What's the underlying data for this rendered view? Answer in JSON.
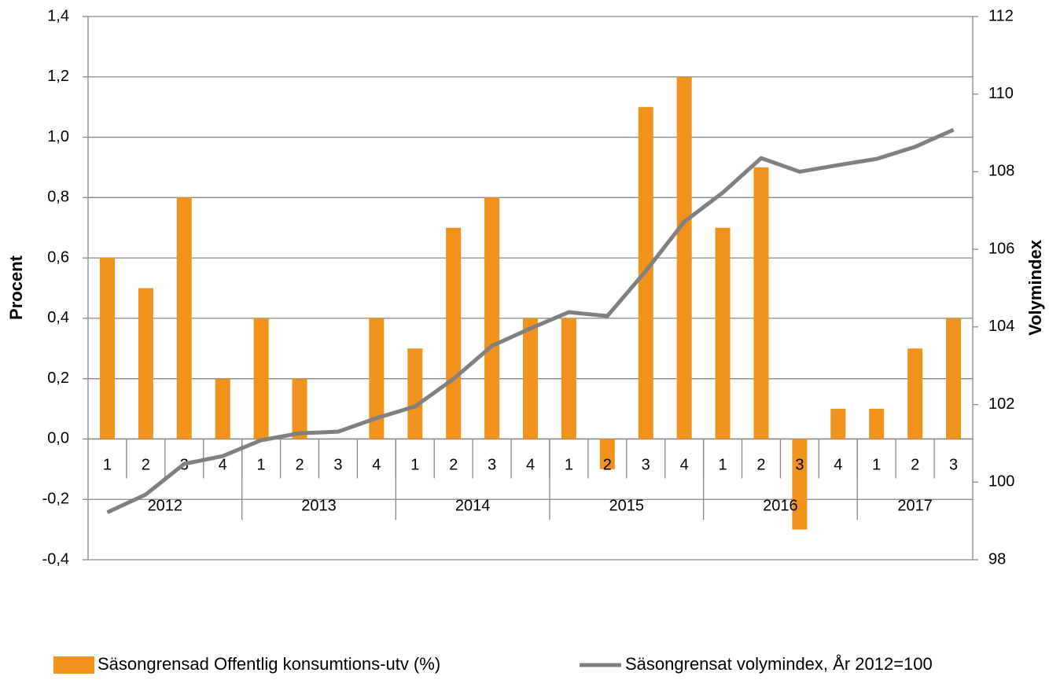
{
  "chart_data": {
    "type": "bar_line",
    "y_label": "Procent",
    "y2_label": "Volymindex",
    "categories": [
      "1",
      "2",
      "3",
      "4",
      "1",
      "2",
      "3",
      "4",
      "1",
      "2",
      "3",
      "4",
      "1",
      "2",
      "3",
      "4",
      "1",
      "2",
      "3",
      "4",
      "1",
      "2",
      "3"
    ],
    "groups": [
      {
        "label": "2012",
        "count": 4
      },
      {
        "label": "2013",
        "count": 4
      },
      {
        "label": "2014",
        "count": 4
      },
      {
        "label": "2015",
        "count": 4
      },
      {
        "label": "2016",
        "count": 4
      },
      {
        "label": "2017",
        "count": 3
      }
    ],
    "series": [
      {
        "name": "Säsongrensad Offentlig konsumtions-utv (%)",
        "type": "bar",
        "color": "#f0921c",
        "values": [
          0.6,
          0.5,
          0.8,
          0.2,
          0.4,
          0.2,
          0.0,
          0.4,
          0.3,
          0.7,
          0.8,
          0.4,
          0.4,
          -0.1,
          1.1,
          1.2,
          0.7,
          0.9,
          -0.3,
          0.1,
          0.1,
          0.3,
          0.4
        ]
      },
      {
        "name": "Säsongrensat volymindex, År 2012=100",
        "type": "line",
        "axis": "y2",
        "color": "#808080",
        "values": [
          99.22,
          99.68,
          100.47,
          100.67,
          101.08,
          101.26,
          101.3,
          101.65,
          101.95,
          102.66,
          103.51,
          103.96,
          104.38,
          104.28,
          105.44,
          106.71,
          107.46,
          108.35,
          108.0,
          108.17,
          108.33,
          108.64,
          109.08
        ]
      }
    ],
    "ylim": [
      -0.4,
      1.4
    ],
    "yticks": [
      {
        "value": -0.4,
        "label": "-0,4"
      },
      {
        "value": -0.2,
        "label": "-0,2"
      },
      {
        "value": 0.0,
        "label": "0,0"
      },
      {
        "value": 0.2,
        "label": "0,2"
      },
      {
        "value": 0.4,
        "label": "0,4"
      },
      {
        "value": 0.6,
        "label": "0,6"
      },
      {
        "value": 0.8,
        "label": "0,8"
      },
      {
        "value": 1.0,
        "label": "1,0"
      },
      {
        "value": 1.2,
        "label": "1,2"
      },
      {
        "value": 1.4,
        "label": "1,4"
      }
    ],
    "y2lim": [
      98,
      112
    ],
    "y2ticks": [
      98,
      100,
      102,
      104,
      106,
      108,
      110,
      112
    ],
    "grid": true,
    "legend": "bottom"
  }
}
